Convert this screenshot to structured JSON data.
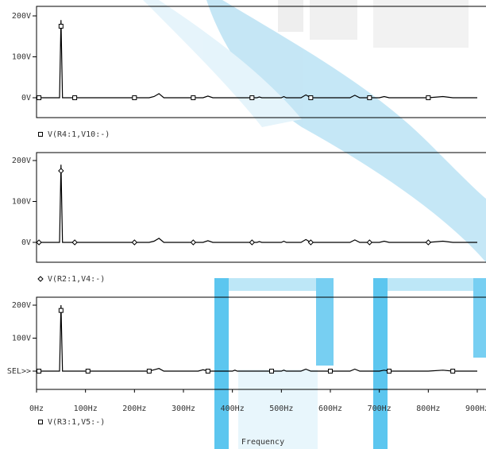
{
  "colors": {
    "frame": "#000000",
    "trace": "#000000",
    "text": "#333333",
    "watermark_blue": "#35a8e0",
    "watermark_cyan": "#18c8f0"
  },
  "chart_data": [
    {
      "type": "line",
      "xlabel": "",
      "ylabel": "",
      "xlim": [
        0,
        900
      ],
      "ylim": [
        0,
        220
      ],
      "yticks": [
        {
          "value": 0,
          "label": "0V"
        },
        {
          "value": 100,
          "label": "100V"
        },
        {
          "value": 200,
          "label": "200V"
        }
      ],
      "legend": {
        "marker": "square",
        "label": "V(R4:1,V10:-)"
      },
      "series": [
        {
          "name": "V(R4:1,V10:-)",
          "marker": "square",
          "points": [
            [
              0,
              0
            ],
            [
              40,
              0
            ],
            [
              47,
              0
            ],
            [
              50,
              190
            ],
            [
              53,
              0
            ],
            [
              230,
              0
            ],
            [
              240,
              3
            ],
            [
              250,
              10
            ],
            [
              260,
              0
            ],
            [
              340,
              0
            ],
            [
              350,
              4
            ],
            [
              360,
              0
            ],
            [
              450,
              0
            ],
            [
              455,
              2
            ],
            [
              460,
              0
            ],
            [
              500,
              0
            ],
            [
              505,
              3
            ],
            [
              510,
              0
            ],
            [
              540,
              0
            ],
            [
              550,
              7
            ],
            [
              560,
              0
            ],
            [
              640,
              0
            ],
            [
              650,
              6
            ],
            [
              660,
              0
            ],
            [
              700,
              0
            ],
            [
              710,
              3
            ],
            [
              720,
              0
            ],
            [
              800,
              0
            ],
            [
              830,
              3
            ],
            [
              850,
              0
            ],
            [
              880,
              0
            ],
            [
              900,
              0
            ]
          ],
          "marker_x": [
            5,
            78,
            200,
            320,
            440,
            560,
            680,
            800
          ]
        }
      ]
    },
    {
      "type": "line",
      "xlabel": "",
      "ylabel": "",
      "xlim": [
        0,
        900
      ],
      "ylim": [
        0,
        220
      ],
      "yticks": [
        {
          "value": 0,
          "label": "0V"
        },
        {
          "value": 100,
          "label": "100V"
        },
        {
          "value": 200,
          "label": "200V"
        }
      ],
      "legend": {
        "marker": "diamond",
        "label": "V(R2:1,V4:-)"
      },
      "series": [
        {
          "name": "V(R2:1,V4:-)",
          "marker": "diamond",
          "points": [
            [
              0,
              0
            ],
            [
              44,
              0
            ],
            [
              47,
              0
            ],
            [
              50,
              190
            ],
            [
              53,
              0
            ],
            [
              230,
              0
            ],
            [
              240,
              3
            ],
            [
              250,
              10
            ],
            [
              260,
              0
            ],
            [
              340,
              0
            ],
            [
              350,
              4
            ],
            [
              360,
              0
            ],
            [
              450,
              0
            ],
            [
              455,
              2
            ],
            [
              460,
              0
            ],
            [
              500,
              0
            ],
            [
              505,
              3
            ],
            [
              510,
              0
            ],
            [
              540,
              0
            ],
            [
              550,
              7
            ],
            [
              560,
              0
            ],
            [
              640,
              0
            ],
            [
              650,
              6
            ],
            [
              660,
              0
            ],
            [
              700,
              0
            ],
            [
              710,
              3
            ],
            [
              720,
              0
            ],
            [
              800,
              0
            ],
            [
              830,
              3
            ],
            [
              850,
              0
            ],
            [
              880,
              0
            ],
            [
              900,
              0
            ]
          ],
          "marker_x": [
            5,
            78,
            200,
            320,
            440,
            560,
            680,
            800
          ]
        }
      ]
    },
    {
      "type": "line",
      "xlabel": "Frequency",
      "ylabel": "",
      "xlim": [
        0,
        900
      ],
      "ylim": [
        0,
        220
      ],
      "yticks": [
        {
          "value": 0,
          "label": "SEL>>"
        },
        {
          "value": 100,
          "label": "100V"
        },
        {
          "value": 200,
          "label": "200V"
        }
      ],
      "xticks": [
        {
          "value": 0,
          "label": "0Hz"
        },
        {
          "value": 100,
          "label": "100Hz"
        },
        {
          "value": 200,
          "label": "200Hz"
        },
        {
          "value": 300,
          "label": "300Hz"
        },
        {
          "value": 400,
          "label": "400Hz"
        },
        {
          "value": 500,
          "label": "500Hz"
        },
        {
          "value": 600,
          "label": "600Hz"
        },
        {
          "value": 700,
          "label": "700Hz"
        },
        {
          "value": 800,
          "label": "800Hz"
        },
        {
          "value": 900,
          "label": "900Hz"
        }
      ],
      "legend": {
        "marker": "square",
        "label": "V(R3:1,V5:-)"
      },
      "series": [
        {
          "name": "V(R3:1,V5:-)",
          "marker": "square",
          "points": [
            [
              0,
              0
            ],
            [
              44,
              0
            ],
            [
              47,
              0
            ],
            [
              50,
              200
            ],
            [
              53,
              0
            ],
            [
              230,
              0
            ],
            [
              240,
              4
            ],
            [
              250,
              8
            ],
            [
              260,
              0
            ],
            [
              330,
              0
            ],
            [
              340,
              4
            ],
            [
              350,
              0
            ],
            [
              400,
              0
            ],
            [
              405,
              3
            ],
            [
              410,
              0
            ],
            [
              500,
              0
            ],
            [
              505,
              3
            ],
            [
              510,
              0
            ],
            [
              540,
              0
            ],
            [
              550,
              6
            ],
            [
              560,
              0
            ],
            [
              640,
              0
            ],
            [
              650,
              6
            ],
            [
              660,
              0
            ],
            [
              700,
              0
            ],
            [
              710,
              3
            ],
            [
              720,
              0
            ],
            [
              800,
              0
            ],
            [
              830,
              3
            ],
            [
              850,
              0
            ],
            [
              880,
              0
            ],
            [
              900,
              0
            ]
          ],
          "marker_x": [
            5,
            105,
            230,
            350,
            480,
            600,
            720,
            850
          ]
        }
      ]
    }
  ]
}
